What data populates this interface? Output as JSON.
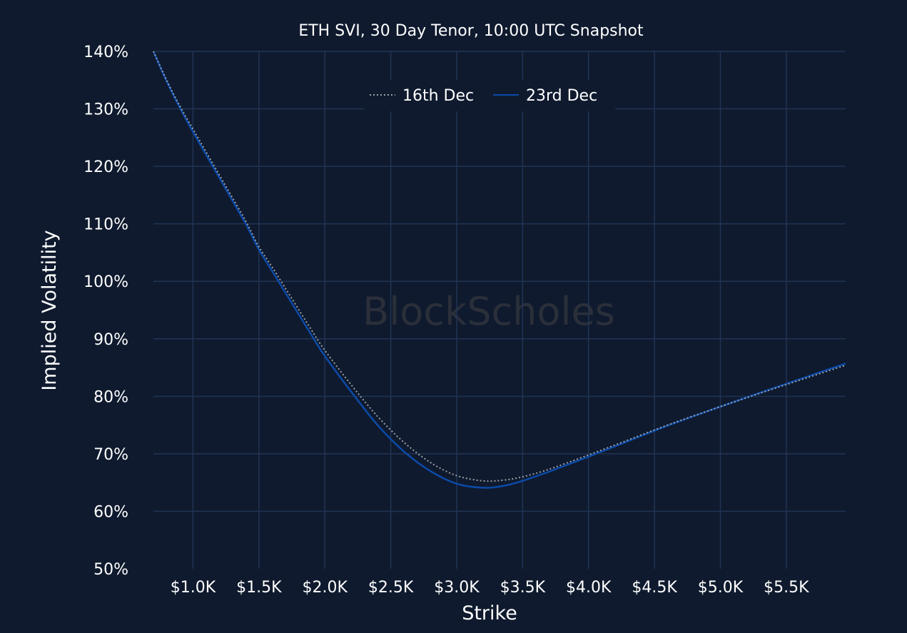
{
  "chart_data": {
    "type": "line",
    "title": "ETH SVI, 30 Day Tenor, 10:00 UTC Snapshot",
    "xlabel": "Strike",
    "ylabel": "Implied Volatility",
    "xlim": [
      700,
      5950
    ],
    "ylim": [
      50,
      140
    ],
    "x_ticks": [
      1000,
      1500,
      2000,
      2500,
      3000,
      3500,
      4000,
      4500,
      5000,
      5500
    ],
    "x_tick_labels": [
      "$1.0K",
      "$1.5K",
      "$2.0K",
      "$2.5K",
      "$3.0K",
      "$3.5K",
      "$4.0K",
      "$4.5K",
      "$5.0K",
      "$5.5K"
    ],
    "y_ticks": [
      50,
      60,
      70,
      80,
      90,
      100,
      110,
      120,
      130,
      140
    ],
    "y_tick_labels": [
      "50%",
      "60%",
      "70%",
      "80%",
      "90%",
      "100%",
      "110%",
      "120%",
      "130%",
      "140%"
    ],
    "grid": true,
    "legend_position": "top-center",
    "watermark": "BlockScholes",
    "series": [
      {
        "name": "16th Dec",
        "style": "dotted",
        "color": "#9aa0a6",
        "x": [
          700,
          800,
          900,
          1000,
          1100,
          1250,
          1400,
          1500,
          1600,
          1750,
          1900,
          2000,
          2200,
          2400,
          2600,
          2800,
          3000,
          3200,
          3350,
          3500,
          3700,
          4000,
          4300,
          4600,
          5000,
          5400,
          5950
        ],
        "y": [
          140,
          135,
          130.5,
          126.5,
          122.5,
          116.5,
          110.5,
          106,
          102.5,
          97,
          91.5,
          88,
          82,
          76.5,
          72,
          68.5,
          66.2,
          65.3,
          65.4,
          66,
          67.3,
          69.8,
          72.4,
          75,
          78.2,
          81.3,
          85.4
        ]
      },
      {
        "name": "23rd Dec",
        "style": "solid",
        "color": "#0b4aa8",
        "x": [
          700,
          800,
          900,
          1000,
          1100,
          1250,
          1400,
          1500,
          1600,
          1750,
          1900,
          2000,
          2200,
          2400,
          2600,
          2800,
          3000,
          3200,
          3350,
          3500,
          3700,
          4000,
          4300,
          4600,
          5000,
          5400,
          5950
        ],
        "y": [
          140,
          134.8,
          130.2,
          126,
          122,
          116,
          110,
          105.5,
          101.8,
          96.2,
          90.6,
          87,
          80.8,
          75,
          70.4,
          67,
          64.8,
          64.1,
          64.4,
          65.3,
          66.9,
          69.5,
          72.2,
          74.9,
          78.2,
          81.4,
          85.7
        ]
      }
    ]
  }
}
